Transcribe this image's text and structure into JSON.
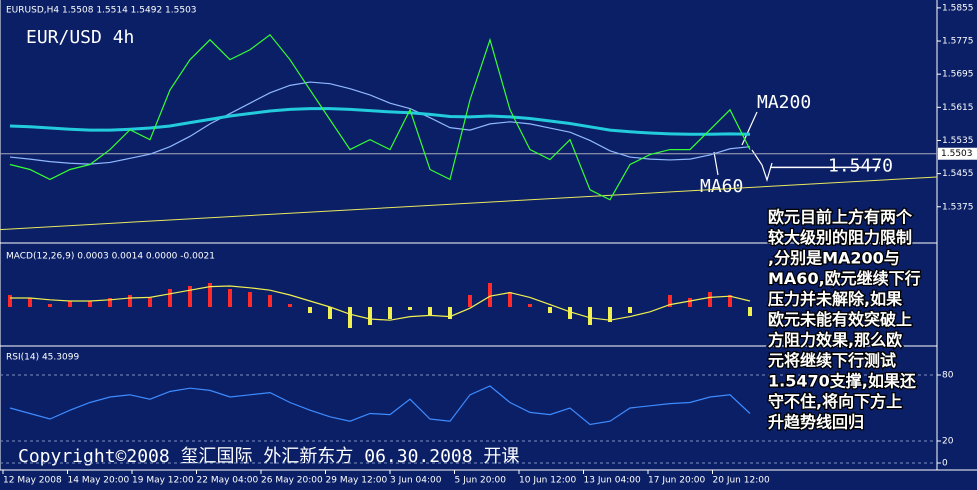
{
  "chart_data": [
    {
      "type": "line",
      "title": "EURUSD,H4 1.5508 1.5514 1.5492 1.5503",
      "subtitle": "EUR/USD 4h",
      "series": [
        {
          "color": "#33ff33",
          "values": [
            1.5477,
            1.5465,
            1.5441,
            1.5465,
            1.5477,
            1.5513,
            1.5561,
            1.5537,
            1.5657,
            1.573,
            1.5778,
            1.573,
            1.5754,
            1.579,
            1.573,
            1.5657,
            1.5585,
            1.5513,
            1.5537,
            1.5513,
            1.5609,
            1.5465,
            1.5441,
            1.5633,
            1.5778,
            1.5609,
            1.5513,
            1.5489,
            1.5537,
            1.5416,
            1.5392,
            1.5477,
            1.5501,
            1.5513,
            1.5513,
            1.5561,
            1.5609,
            1.5513
          ]
        },
        {
          "name": "MA200",
          "color": "#22ccdd",
          "values": [
            1.557,
            1.5568,
            1.5565,
            1.5562,
            1.556,
            1.556,
            1.5562,
            1.5565,
            1.557,
            1.5578,
            1.5586,
            1.5594,
            1.56,
            1.5606,
            1.561,
            1.5612,
            1.5612,
            1.561,
            1.5607,
            1.5604,
            1.5602,
            1.5598,
            1.5593,
            1.5592,
            1.5594,
            1.5592,
            1.5588,
            1.5582,
            1.5576,
            1.5568,
            1.556,
            1.5556,
            1.5553,
            1.5551,
            1.555,
            1.555,
            1.5551,
            1.555
          ]
        },
        {
          "name": "MA60",
          "color": "#8fb8ff",
          "values": [
            1.5495,
            1.549,
            1.5484,
            1.548,
            1.5478,
            1.5482,
            1.5492,
            1.5502,
            1.552,
            1.5545,
            1.5575,
            1.56,
            1.5625,
            1.565,
            1.5668,
            1.5676,
            1.5672,
            1.566,
            1.5645,
            1.5625,
            1.5612,
            1.559,
            1.5566,
            1.556,
            1.5575,
            1.558,
            1.5575,
            1.5565,
            1.5555,
            1.5535,
            1.551,
            1.5495,
            1.549,
            1.5488,
            1.549,
            1.55,
            1.5515,
            1.552
          ]
        }
      ],
      "ylim": [
        1.529,
        1.5874
      ],
      "yticks": [
        1.5855,
        1.5775,
        1.5695,
        1.5615,
        1.5535,
        1.5455,
        1.5375
      ],
      "last_price": 1.5503,
      "trendline": [
        1.532,
        1.5447
      ],
      "trendline_color": "#e8e860",
      "support": {
        "value": 1.547,
        "label": "1.5470"
      }
    },
    {
      "type": "macd",
      "title": "MACD(12,26,9) 0.0003 0.0014 0.0000 -0.0021",
      "values": [
        0.002,
        0.0015,
        0.0005,
        0.001,
        0.001,
        0.0015,
        0.002,
        0.0015,
        0.003,
        0.0035,
        0.004,
        0.003,
        0.0025,
        0.002,
        0.0005,
        -0.001,
        -0.002,
        -0.0035,
        -0.003,
        -0.002,
        -0.0005,
        -0.0015,
        -0.002,
        0.002,
        0.004,
        0.0025,
        0.0005,
        -0.001,
        -0.002,
        -0.003,
        -0.0025,
        -0.001,
        0,
        0.002,
        0.0015,
        0.0025,
        0.002,
        -0.0015
      ],
      "positive_color": "#ff2a2a",
      "negative_color": "#f0f050",
      "signal": {
        "color": "#f0f050",
        "values": [
          0.0015,
          0.0015,
          0.0012,
          0.001,
          0.001,
          0.0012,
          0.0015,
          0.0016,
          0.0022,
          0.0028,
          0.0034,
          0.0035,
          0.0032,
          0.0028,
          0.002,
          0.001,
          0.0,
          -0.0012,
          -0.002,
          -0.0022,
          -0.0016,
          -0.0014,
          -0.0016,
          -0.0002,
          0.0018,
          0.0024,
          0.0016,
          0.0004,
          -0.0008,
          -0.0018,
          -0.0022,
          -0.0016,
          -0.0008,
          0.0004,
          0.001,
          0.0016,
          0.0018,
          0.001
        ]
      },
      "ylim": [
        -0.006,
        0.0075
      ]
    },
    {
      "type": "line",
      "title": "RSI(14) 45.3099",
      "series": [
        {
          "color": "#3d8bff",
          "values": [
            50,
            45,
            40,
            48,
            55,
            60,
            62,
            58,
            65,
            68,
            66,
            60,
            62,
            64,
            55,
            48,
            42,
            38,
            45,
            44,
            58,
            40,
            38,
            62,
            70,
            55,
            46,
            44,
            50,
            35,
            38,
            50,
            52,
            54,
            55,
            60,
            62,
            45
          ]
        }
      ],
      "ylim": [
        0,
        100
      ],
      "yticks": [
        0,
        20,
        80
      ],
      "grid": true
    }
  ],
  "time_axis": [
    "12 May 2008",
    "14 May 20:00",
    "19 May 12:00",
    "22 May 04:00",
    "26 May 20:00",
    "29 May 12:00",
    "3 Jun 04:00",
    "5 Jun 20:00",
    "10 Jun 12:00",
    "13 Jun 04:00",
    "17 Jun 20:00",
    "20 Jun 12:00"
  ],
  "annotation": [
    "欧元目前上方有两个",
    "较大级别的阻力限制",
    ",分别是MA200与",
    "MA60,欧元继续下行",
    "压力并未解除,如果",
    "欧元未能有效突破上",
    "方阻力效果,那么欧",
    "元将继续下行测试",
    "1.5470支撑,如果还",
    "守不住,将向下方上",
    "升趋势线回归"
  ],
  "copyright": "Copyright©2008 玺汇国际 外汇新东方 06.30.2008 开课"
}
